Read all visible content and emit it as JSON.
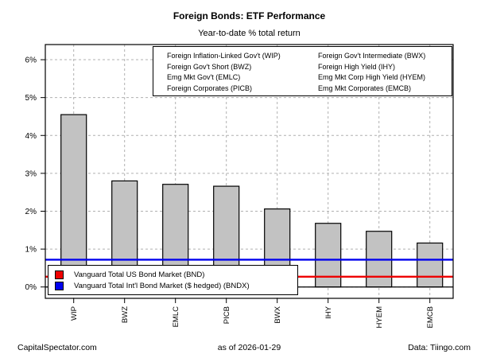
{
  "header": {
    "title": "Foreign Bonds: ETF Performance",
    "subtitle": "Year-to-date % total return"
  },
  "chart_data": {
    "type": "bar",
    "title": "Foreign Bonds: ETF Performance",
    "subtitle": "Year-to-date % total return",
    "categories": [
      "WIP",
      "BWZ",
      "EMLC",
      "PICB",
      "BWX",
      "IHY",
      "HYEM",
      "EMCB"
    ],
    "values": [
      4.55,
      2.8,
      2.71,
      2.66,
      2.06,
      1.68,
      1.47,
      1.16
    ],
    "xlabel": "",
    "ylabel": "",
    "ylim": [
      -0.3,
      6.4
    ],
    "yticks": [
      0,
      1,
      2,
      3,
      4,
      5,
      6
    ],
    "ytick_labels": [
      "0%",
      "1%",
      "2%",
      "3%",
      "4%",
      "5%",
      "6%"
    ],
    "grid": true,
    "grid_style": "dashed",
    "bar_color": "#c2c2c2",
    "bar_border_color": "#000000",
    "gridline_color": "#b0b0b0",
    "hlines": [
      {
        "name": "BND",
        "label": "Vanguard Total US Bond Market (BND)",
        "value": 0.27,
        "color": "#ee0000"
      },
      {
        "name": "BNDX",
        "label": "Vanguard Total Int'l Bond Market ($ hedged) (BNDX)",
        "value": 0.72,
        "color": "#0000ee"
      }
    ],
    "etf_legend": {
      "left": [
        "Foreign Inflation-Linked Gov't (WIP)",
        "Foreign Gov't Short (BWZ)",
        "Emg Mkt Gov't (EMLC)",
        "Foreign Corporates (PICB)"
      ],
      "right": [
        "Foreign Gov't Intermediate (BWX)",
        "Foreign High Yield (IHY)",
        "Emg Mkt Corp High Yield (HYEM)",
        "Emg Mkt Corporates (EMCB)"
      ]
    }
  },
  "footer": {
    "left": "CapitalSpectator.com",
    "center": "as of  2026-01-29",
    "right": "Data: Tiingo.com"
  }
}
